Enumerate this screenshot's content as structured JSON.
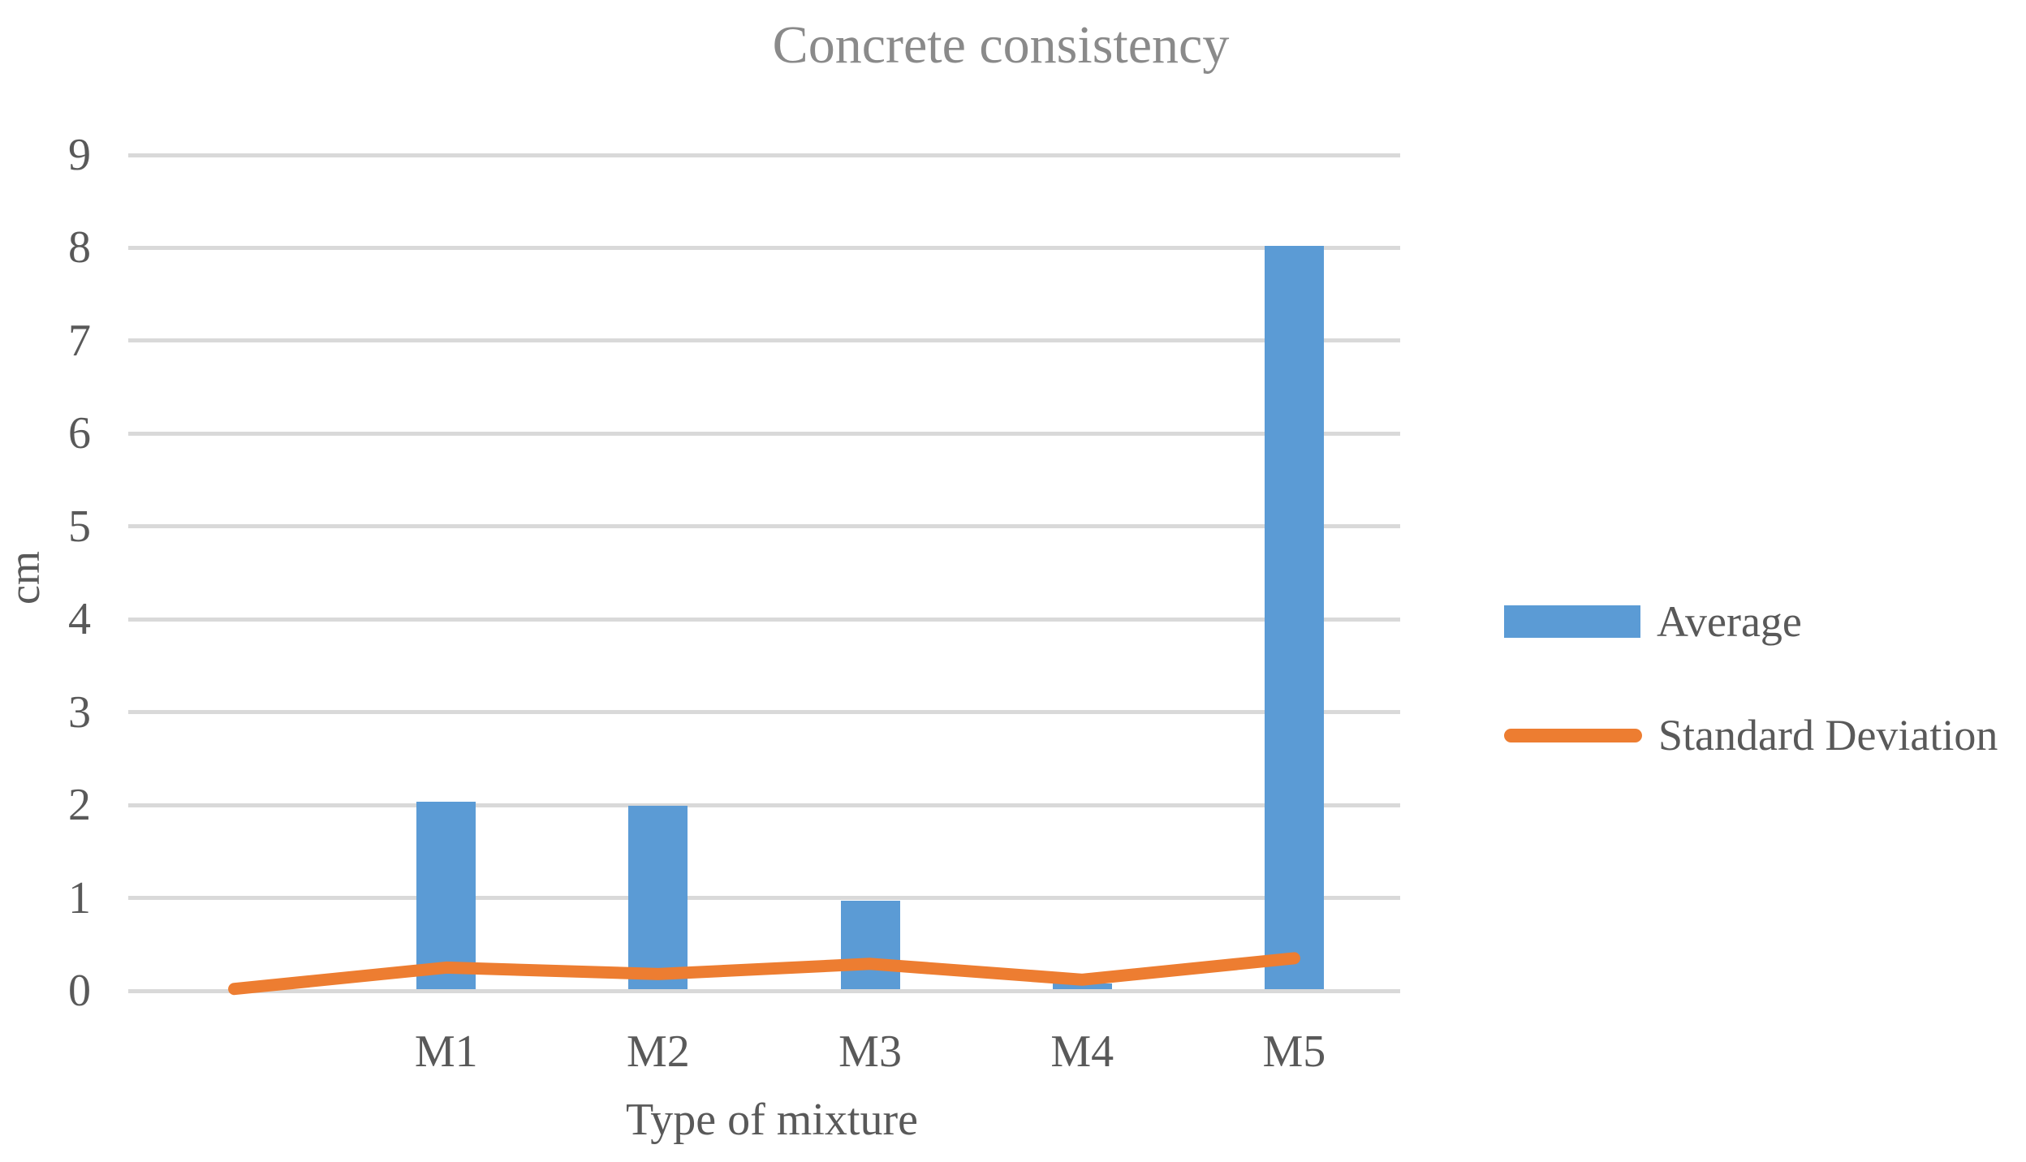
{
  "title": "Concrete consistency",
  "y_axis": {
    "title": "cm",
    "tick_labels": [
      "0",
      "1",
      "2",
      "3",
      "4",
      "5",
      "6",
      "7",
      "8",
      "9"
    ]
  },
  "x_axis": {
    "title": "Type of mixture"
  },
  "legend": {
    "average_label": "Average",
    "sd_label": "Standard Deviation"
  },
  "colors": {
    "bar": "#5B9BD5",
    "line": "#ED7D31",
    "gridline": "#D9D9D9",
    "axis_text": "#595959",
    "title_text": "#8A8A8A"
  },
  "chart_data": {
    "type": "bar",
    "subtype": "combo bar+line, single y axis",
    "title": "Concrete consistency",
    "xlabel": "Type of mixture",
    "ylabel": "cm",
    "ylim": [
      0,
      9
    ],
    "grid": true,
    "legend_position": "right",
    "categories": [
      "",
      "M1",
      "M2",
      "M3",
      "M4",
      "M5"
    ],
    "series": [
      {
        "name": "Average",
        "type": "bar",
        "color": "#5B9BD5",
        "values": [
          0,
          2.04,
          1.99,
          0.97,
          0.08,
          8.02
        ]
      },
      {
        "name": "Standard Deviation",
        "type": "line",
        "color": "#ED7D31",
        "values": [
          0.02,
          0.25,
          0.18,
          0.29,
          0.12,
          0.35
        ]
      }
    ]
  }
}
